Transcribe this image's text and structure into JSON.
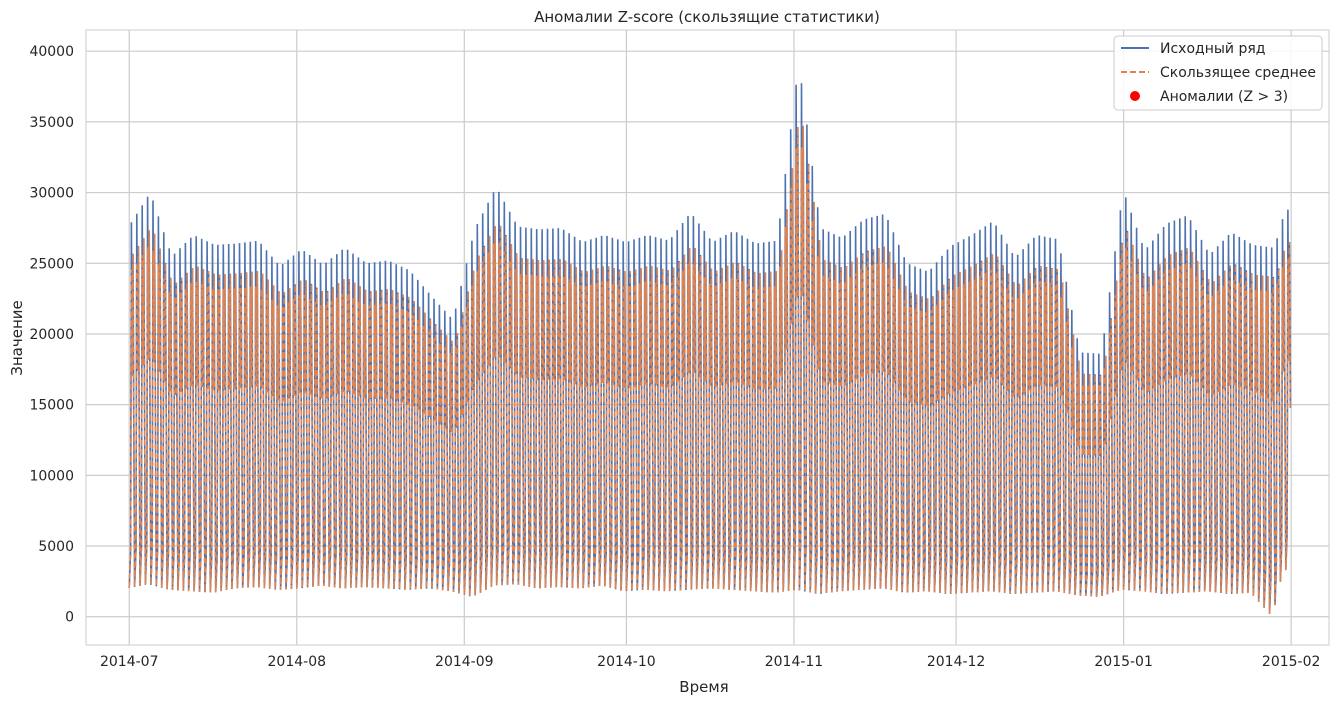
{
  "chart_data": {
    "type": "line",
    "title": "Аномалии Z-score (скользящие статистики)",
    "xlabel": "Время",
    "ylabel": "Значение",
    "x_ticks": [
      "2014-07",
      "2014-08",
      "2014-09",
      "2014-10",
      "2014-11",
      "2014-12",
      "2015-01",
      "2015-02"
    ],
    "y_ticks": [
      0,
      5000,
      10000,
      15000,
      20000,
      25000,
      30000,
      35000,
      40000
    ],
    "xlim": [
      "2014-06-23",
      "2015-02-08"
    ],
    "ylim": [
      -2000,
      41500
    ],
    "grid": true,
    "legend_position": "top-right",
    "series": [
      {
        "name": "Исходный ряд",
        "color": "#4c72b0",
        "style": "solid",
        "x": [
          "2014-07-01",
          "2014-07-05",
          "2014-07-09",
          "2014-07-13",
          "2014-07-17",
          "2014-07-21",
          "2014-07-25",
          "2014-07-29",
          "2014-08-02",
          "2014-08-06",
          "2014-08-10",
          "2014-08-14",
          "2014-08-18",
          "2014-08-22",
          "2014-08-26",
          "2014-08-30",
          "2014-09-03",
          "2014-09-07",
          "2014-09-11",
          "2014-09-15",
          "2014-09-19",
          "2014-09-23",
          "2014-09-27",
          "2014-10-01",
          "2014-10-05",
          "2014-10-09",
          "2014-10-13",
          "2014-10-17",
          "2014-10-21",
          "2014-10-25",
          "2014-10-29",
          "2014-11-02",
          "2014-11-06",
          "2014-11-10",
          "2014-11-14",
          "2014-11-18",
          "2014-11-22",
          "2014-11-26",
          "2014-11-30",
          "2014-12-04",
          "2014-12-08",
          "2014-12-12",
          "2014-12-16",
          "2014-12-20",
          "2014-12-24",
          "2014-12-28",
          "2015-01-01",
          "2015-01-05",
          "2015-01-09",
          "2015-01-13",
          "2015-01-17",
          "2015-01-21",
          "2015-01-25",
          "2015-01-29",
          "2015-01-31"
        ],
        "max": [
          27600,
          30000,
          25500,
          27000,
          26300,
          26400,
          26600,
          24800,
          26000,
          24900,
          26100,
          25000,
          25200,
          24500,
          22700,
          21000,
          27400,
          30400,
          27600,
          27400,
          27500,
          26500,
          27000,
          26500,
          27000,
          26600,
          28600,
          26500,
          27300,
          26400,
          26600,
          39200,
          27500,
          26800,
          28100,
          28500,
          25000,
          24400,
          26200,
          27000,
          28000,
          25400,
          27000,
          26700,
          18700,
          18600,
          30200,
          25900,
          27800,
          28400,
          25600,
          27200,
          26300,
          26100,
          28800
        ],
        "min": [
          2000,
          2300,
          1900,
          1800,
          1700,
          2000,
          2100,
          1900,
          2000,
          2200,
          2000,
          2100,
          2000,
          1900,
          2000,
          1800,
          1400,
          2200,
          2300,
          2000,
          2100,
          2000,
          2200,
          1800,
          1900,
          1800,
          1900,
          2000,
          1900,
          1800,
          1700,
          1900,
          1600,
          1800,
          1900,
          2000,
          1700,
          1800,
          1600,
          1700,
          1800,
          1600,
          1700,
          1800,
          1500,
          1400,
          1900,
          1800,
          1600,
          1700,
          1800,
          1600,
          1700,
          0,
          3300
        ]
      },
      {
        "name": "Скользящее среднее",
        "color": "#dd8452",
        "style": "dashed"
      },
      {
        "name": "Аномалии (Z > 3)",
        "color": "#ff0000",
        "style": "marker",
        "points": []
      }
    ]
  }
}
